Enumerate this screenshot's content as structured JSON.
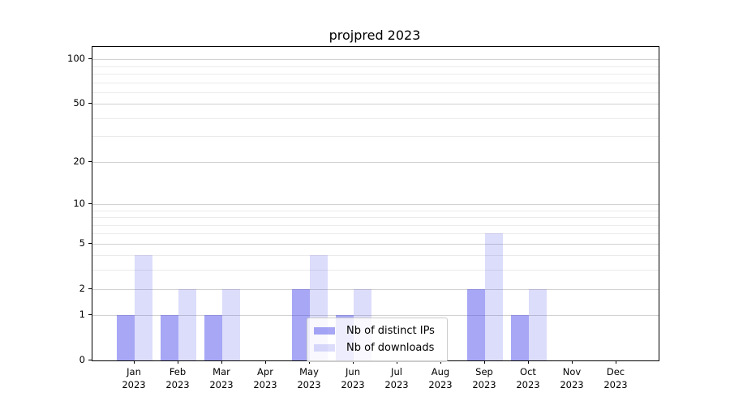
{
  "chart_data": {
    "type": "bar",
    "title": "projpred 2023",
    "categories": [
      "Jan",
      "Feb",
      "Mar",
      "Apr",
      "May",
      "Jun",
      "Jul",
      "Aug",
      "Sep",
      "Oct",
      "Nov",
      "Dec"
    ],
    "x_tick_second_line": "2023",
    "series": [
      {
        "name": "Nb of distinct IPs",
        "color": "rgba(60,60,235,0.45)",
        "values": [
          1,
          1,
          1,
          0,
          2,
          1,
          0,
          0,
          2,
          1,
          0,
          0
        ]
      },
      {
        "name": "Nb of downloads",
        "color": "rgba(60,60,235,0.18)",
        "values": [
          4,
          2,
          2,
          0,
          4,
          2,
          0,
          0,
          6,
          2,
          0,
          0
        ]
      }
    ],
    "y_axis": {
      "scale": "log10(1+x)",
      "ticks": [
        0,
        1,
        2,
        5,
        10,
        20,
        50,
        100
      ],
      "minor_ticks": [
        3,
        4,
        6,
        7,
        8,
        9,
        30,
        40,
        60,
        70,
        80,
        90
      ],
      "max": 121
    },
    "legend": {
      "position": "lower center",
      "entries": [
        "Nb of distinct IPs",
        "Nb of downloads"
      ]
    },
    "colors": {
      "major_grid": "#d2d2d2",
      "minor_grid": "#ebebeb",
      "spine": "#000000",
      "legend_border": "#cccccc"
    }
  }
}
